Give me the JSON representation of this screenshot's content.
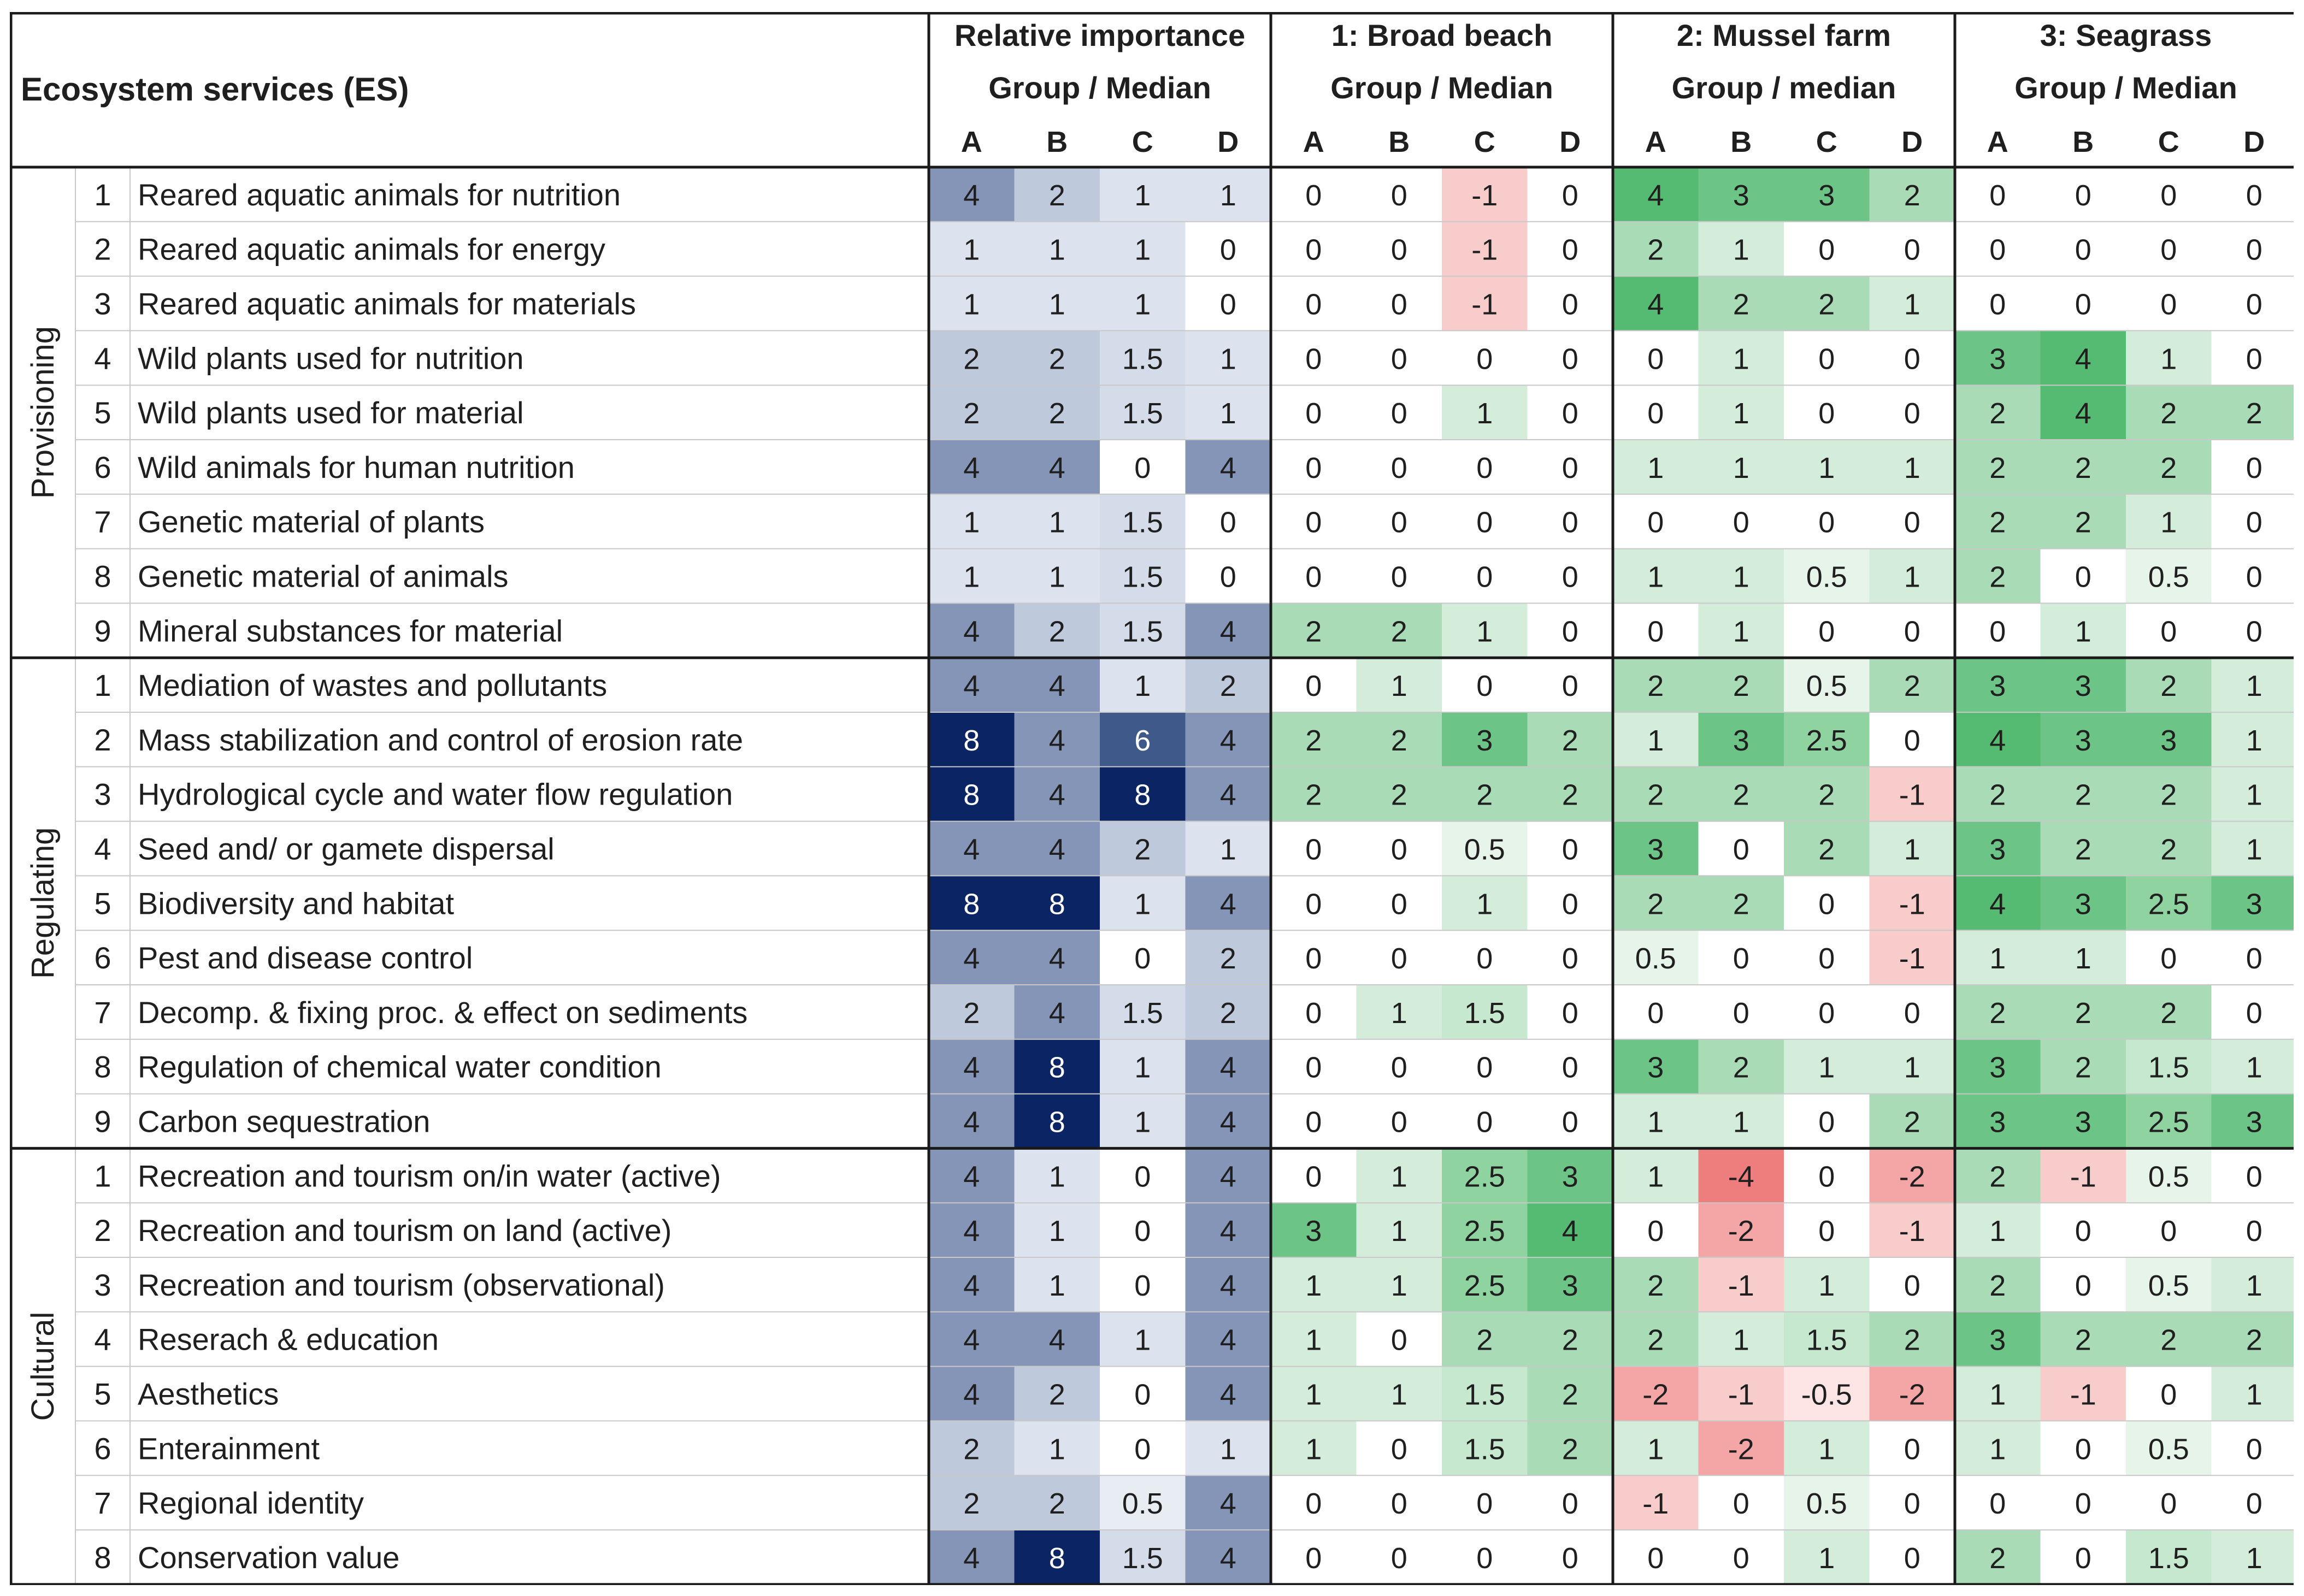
{
  "chart_data": {
    "type": "table",
    "title": "Ecosystem services (ES)",
    "column_groups": [
      {
        "key": "rel",
        "title": "Relative importance",
        "subtitle": "Group / Median"
      },
      {
        "key": "beach",
        "title": "1: Broad beach",
        "subtitle": "Group / Median"
      },
      {
        "key": "mussel",
        "title": "2: Mussel farm",
        "subtitle": "Group / median"
      },
      {
        "key": "seagrass",
        "title": "3: Seagrass",
        "subtitle": "Group / Median"
      }
    ],
    "group_columns": [
      "A",
      "B",
      "C",
      "D"
    ],
    "sections": [
      {
        "name": "Provisioning",
        "rows": [
          {
            "num": "1",
            "label": "Reared aquatic animals for nutrition",
            "values": [
              "4",
              "2",
              "1",
              "1",
              "0",
              "0",
              "-1",
              "0",
              "4",
              "3",
              "3",
              "2",
              "0",
              "0",
              "0",
              "0"
            ]
          },
          {
            "num": "2",
            "label": "Reared aquatic animals for energy",
            "values": [
              "1",
              "1",
              "1",
              "0",
              "0",
              "0",
              "-1",
              "0",
              "2",
              "1",
              "0",
              "0",
              "0",
              "0",
              "0",
              "0"
            ]
          },
          {
            "num": "3",
            "label": "Reared aquatic animals for materials",
            "values": [
              "1",
              "1",
              "1",
              "0",
              "0",
              "0",
              "-1",
              "0",
              "4",
              "2",
              "2",
              "1",
              "0",
              "0",
              "0",
              "0"
            ]
          },
          {
            "num": "4",
            "label": "Wild plants used for nutrition",
            "values": [
              "2",
              "2",
              "1.5",
              "1",
              "0",
              "0",
              "0",
              "0",
              "0",
              "1",
              "0",
              "0",
              "3",
              "4",
              "1",
              "0"
            ]
          },
          {
            "num": "5",
            "label": "Wild plants used for material",
            "values": [
              "2",
              "2",
              "1.5",
              "1",
              "0",
              "0",
              "1",
              "0",
              "0",
              "1",
              "0",
              "0",
              "2",
              "4",
              "2",
              "2"
            ]
          },
          {
            "num": "6",
            "label": "Wild animals for human nutrition",
            "values": [
              "4",
              "4",
              "0",
              "4",
              "0",
              "0",
              "0",
              "0",
              "1",
              "1",
              "1",
              "1",
              "2",
              "2",
              "2",
              "0"
            ]
          },
          {
            "num": "7",
            "label": "Genetic material of plants",
            "values": [
              "1",
              "1",
              "1.5",
              "0",
              "0",
              "0",
              "0",
              "0",
              "0",
              "0",
              "0",
              "0",
              "2",
              "2",
              "1",
              "0"
            ]
          },
          {
            "num": "8",
            "label": "Genetic material of animals",
            "values": [
              "1",
              "1",
              "1.5",
              "0",
              "0",
              "0",
              "0",
              "0",
              "1",
              "1",
              "0.5",
              "1",
              "2",
              "0",
              "0.5",
              "0"
            ]
          },
          {
            "num": "9",
            "label": "Mineral substances for material",
            "values": [
              "4",
              "2",
              "1.5",
              "4",
              "2",
              "2",
              "1",
              "0",
              "0",
              "1",
              "0",
              "0",
              "0",
              "1",
              "0",
              "0"
            ]
          }
        ]
      },
      {
        "name": "Regulating",
        "rows": [
          {
            "num": "1",
            "label": "Mediation of wastes and pollutants",
            "values": [
              "4",
              "4",
              "1",
              "2",
              "0",
              "1",
              "0",
              "0",
              "2",
              "2",
              "0.5",
              "2",
              "3",
              "3",
              "2",
              "1"
            ]
          },
          {
            "num": "2",
            "label": "Mass stabilization and control of erosion rate",
            "values": [
              "8",
              "4",
              "6",
              "4",
              "2",
              "2",
              "3",
              "2",
              "1",
              "3",
              "2.5",
              "0",
              "4",
              "3",
              "3",
              "1"
            ]
          },
          {
            "num": "3",
            "label": "Hydrological cycle and water flow regulation",
            "values": [
              "8",
              "4",
              "8",
              "4",
              "2",
              "2",
              "2",
              "2",
              "2",
              "2",
              "2",
              "-1",
              "2",
              "2",
              "2",
              "1"
            ]
          },
          {
            "num": "4",
            "label": "Seed and/ or gamete dispersal",
            "values": [
              "4",
              "4",
              "2",
              "1",
              "0",
              "0",
              "0.5",
              "0",
              "3",
              "0",
              "2",
              "1",
              "3",
              "2",
              "2",
              "1"
            ]
          },
          {
            "num": "5",
            "label": "Biodiversity and habitat",
            "values": [
              "8",
              "8",
              "1",
              "4",
              "0",
              "0",
              "1",
              "0",
              "2",
              "2",
              "0",
              "-1",
              "4",
              "3",
              "2.5",
              "3"
            ]
          },
          {
            "num": "6",
            "label": "Pest and disease control",
            "values": [
              "4",
              "4",
              "0",
              "2",
              "0",
              "0",
              "0",
              "0",
              "0.5",
              "0",
              "0",
              "-1",
              "1",
              "1",
              "0",
              "0"
            ]
          },
          {
            "num": "7",
            "label": "Decomp. & fixing proc. & effect on sediments",
            "values": [
              "2",
              "4",
              "1.5",
              "2",
              "0",
              "1",
              "1.5",
              "0",
              "0",
              "0",
              "0",
              "0",
              "2",
              "2",
              "2",
              "0"
            ]
          },
          {
            "num": "8",
            "label": "Regulation of chemical water condition",
            "values": [
              "4",
              "8",
              "1",
              "4",
              "0",
              "0",
              "0",
              "0",
              "3",
              "2",
              "1",
              "1",
              "3",
              "2",
              "1.5",
              "1"
            ]
          },
          {
            "num": "9",
            "label": "Carbon sequestration",
            "values": [
              "4",
              "8",
              "1",
              "4",
              "0",
              "0",
              "0",
              "0",
              "1",
              "1",
              "0",
              "2",
              "3",
              "3",
              "2.5",
              "3"
            ]
          }
        ]
      },
      {
        "name": "Cultural",
        "rows": [
          {
            "num": "1",
            "label": "Recreation and tourism on/in water (active)",
            "values": [
              "4",
              "1",
              "0",
              "4",
              "0",
              "1",
              "2.5",
              "3",
              "1",
              "-4",
              "0",
              "-2",
              "2",
              "-1",
              "0.5",
              "0"
            ]
          },
          {
            "num": "2",
            "label": "Recreation and tourism on land (active)",
            "values": [
              "4",
              "1",
              "0",
              "4",
              "3",
              "1",
              "2.5",
              "4",
              "0",
              "-2",
              "0",
              "-1",
              "1",
              "0",
              "0",
              "0"
            ]
          },
          {
            "num": "3",
            "label": "Recreation and tourism (observational)",
            "values": [
              "4",
              "1",
              "0",
              "4",
              "1",
              "1",
              "2.5",
              "3",
              "2",
              "-1",
              "1",
              "0",
              "2",
              "0",
              "0.5",
              "1"
            ]
          },
          {
            "num": "4",
            "label": "Reserach & education",
            "values": [
              "4",
              "4",
              "1",
              "4",
              "1",
              "0",
              "2",
              "2",
              "2",
              "1",
              "1.5",
              "2",
              "3",
              "2",
              "2",
              "2"
            ]
          },
          {
            "num": "5",
            "label": "Aesthetics",
            "values": [
              "4",
              "2",
              "0",
              "4",
              "1",
              "1",
              "1.5",
              "2",
              "-2",
              "-1",
              "-0.5",
              "-2",
              "1",
              "-1",
              "0",
              "1"
            ]
          },
          {
            "num": "6",
            "label": "Enterainment",
            "values": [
              "2",
              "1",
              "0",
              "1",
              "1",
              "0",
              "1.5",
              "2",
              "1",
              "-2",
              "1",
              "0",
              "1",
              "0",
              "0.5",
              "0"
            ]
          },
          {
            "num": "7",
            "label": "Regional identity",
            "values": [
              "2",
              "2",
              "0.5",
              "4",
              "0",
              "0",
              "0",
              "0",
              "-1",
              "0",
              "0.5",
              "0",
              "0",
              "0",
              "0",
              "0"
            ]
          },
          {
            "num": "8",
            "label": "Conservation value",
            "values": [
              "4",
              "8",
              "1.5",
              "4",
              "0",
              "0",
              "0",
              "0",
              "0",
              "0",
              "1",
              "0",
              "2",
              "0",
              "1.5",
              "1"
            ]
          }
        ]
      }
    ]
  },
  "colors": {
    "rel_0": "#ffffff",
    "rel_05": "#e8ecf3",
    "rel_1": "#dde3ee",
    "rel_15": "#d5dce9",
    "rel_2": "#bfc9dc",
    "rel_4": "#8495b8",
    "rel_6": "#3f5a8a",
    "rel_8": "#0b2463",
    "green_05": "#e6f4ea",
    "green_1": "#d4edda",
    "green_15": "#c6e8cf",
    "green_2": "#a9dcb6",
    "green_25": "#8fd3a0",
    "green_3": "#6cc586",
    "green_4": "#55bb73",
    "red_05": "#fde5e5",
    "red_1": "#f9cccc",
    "red_2": "#f4a6a6",
    "red_4": "#ee7e7e",
    "grid": "#c8c8c8",
    "border": "#1a1a1a"
  }
}
